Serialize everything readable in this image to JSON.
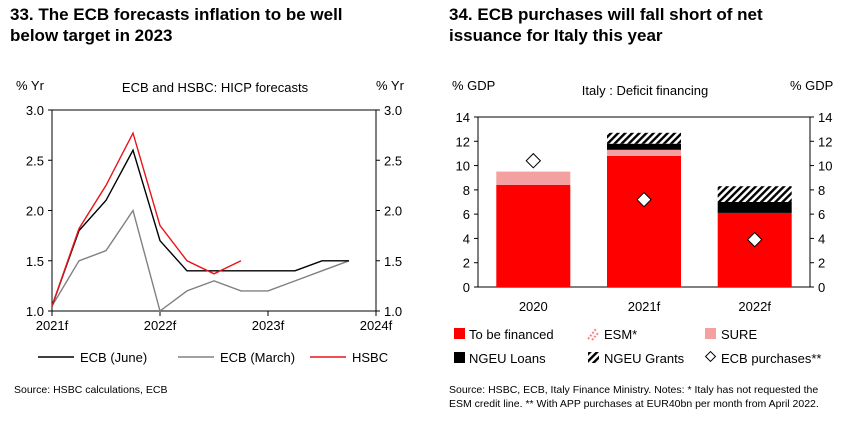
{
  "left": {
    "title": "33. The ECB forecasts inflation to be well below target in 2023",
    "title_line1": "33. The ECB forecasts inflation to be well",
    "title_line2": "below target in 2023",
    "y_unit_left": "% Yr",
    "y_unit_right": "% Yr",
    "source": "Source: HSBC calculations, ECB"
  },
  "right": {
    "title_line1": "34. ECB purchases will fall short of net",
    "title_line2": "issuance for Italy this year",
    "y_unit_left": "% GDP",
    "y_unit_right": "% GDP",
    "source_line1": "Source: HSBC, ECB, Italy Finance Ministry. Notes: * Italy has not requested the",
    "source_line2": "ESM credit line. ** With APP purchases at EUR40bn per month from April 2022."
  },
  "colors": {
    "ecb_june": "#000000",
    "ecb_march": "#808080",
    "hsbc": "#e8141b",
    "to_be_financed": "#ff0000",
    "esm": "#ff7f7f",
    "sure": "#f4a0a0",
    "ngeu_loans": "#000000",
    "frame": "#000000"
  },
  "chart_data": [
    {
      "type": "line",
      "title": "ECB and HSBC: HICP forecasts",
      "xlabel": "",
      "ylabel": "% Yr",
      "x_ticks": [
        "2021f",
        "2022f",
        "2023f",
        "2024f"
      ],
      "xlim": [
        0,
        12
      ],
      "ylim": [
        1.0,
        3.0
      ],
      "y_ticks": [
        "1.0",
        "1.5",
        "2.0",
        "2.5",
        "3.0"
      ],
      "y_tick_values": [
        1.0,
        1.5,
        2.0,
        2.5,
        3.0
      ],
      "series": [
        {
          "name": "ECB (June)",
          "x": [
            0,
            1,
            2,
            3,
            4,
            5,
            6,
            7,
            8,
            9,
            10,
            11
          ],
          "values": [
            1.05,
            1.8,
            2.1,
            2.6,
            1.7,
            1.4,
            1.4,
            1.4,
            1.4,
            1.4,
            1.5,
            1.5
          ]
        },
        {
          "name": "ECB (March)",
          "x": [
            0,
            1,
            2,
            3,
            4,
            5,
            6,
            7,
            8,
            9,
            10,
            11
          ],
          "values": [
            1.05,
            1.5,
            1.6,
            2.0,
            1.0,
            1.2,
            1.3,
            1.2,
            1.2,
            1.3,
            1.4,
            1.5
          ]
        },
        {
          "name": "HSBC",
          "x": [
            0,
            1,
            2,
            3,
            4,
            5,
            6,
            7
          ],
          "values": [
            1.05,
            1.82,
            2.25,
            2.77,
            1.85,
            1.5,
            1.37,
            1.5
          ]
        }
      ],
      "legend": [
        "ECB (June)",
        "ECB (March)",
        "HSBC"
      ],
      "legend_position": "bottom"
    },
    {
      "type": "bar",
      "stacked": true,
      "title": "Italy : Deficit financing",
      "xlabel": "",
      "ylabel": "% GDP",
      "categories": [
        "2020",
        "2021f",
        "2022f"
      ],
      "ylim": [
        0,
        14
      ],
      "y_ticks": [
        "0",
        "2",
        "4",
        "6",
        "8",
        "10",
        "12",
        "14"
      ],
      "y_tick_values": [
        0,
        2,
        4,
        6,
        8,
        10,
        12,
        14
      ],
      "series": [
        {
          "name": "To be financed",
          "values": [
            8.4,
            10.8,
            6.1
          ]
        },
        {
          "name": "ESM*",
          "values": [
            0,
            0,
            0
          ]
        },
        {
          "name": "SURE",
          "values": [
            1.1,
            0.5,
            0
          ]
        },
        {
          "name": "NGEU Loans",
          "values": [
            0,
            0.5,
            0.9
          ]
        },
        {
          "name": "NGEU Grants",
          "values": [
            0,
            0.9,
            1.3
          ]
        }
      ],
      "markers": {
        "name": "ECB purchases**",
        "values": [
          10.4,
          7.2,
          3.9
        ]
      },
      "legend": [
        "To be financed",
        "ESM*",
        "SURE",
        "NGEU Loans",
        "NGEU Grants",
        "ECB purchases**"
      ],
      "legend_position": "bottom"
    }
  ]
}
